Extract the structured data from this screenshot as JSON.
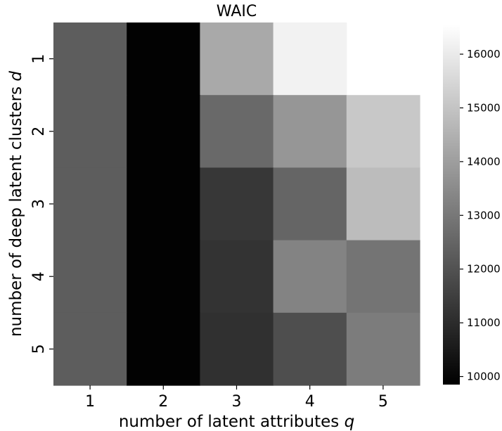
{
  "chart_data": {
    "type": "heatmap",
    "title": "WAIC",
    "xlabel_text": "number of latent attributes",
    "xlabel_symbol": "q",
    "ylabel_text": "number of deep latent clusters",
    "ylabel_symbol": "d",
    "x_categories": [
      "1",
      "2",
      "3",
      "4",
      "5"
    ],
    "y_categories": [
      "1",
      "2",
      "3",
      "4",
      "5"
    ],
    "values": [
      [
        12300,
        9900,
        14300,
        16200,
        null
      ],
      [
        12300,
        9900,
        12600,
        13800,
        15100
      ],
      [
        12300,
        9900,
        11300,
        12500,
        14800
      ],
      [
        12300,
        9900,
        11200,
        13300,
        12900
      ],
      [
        12300,
        9900,
        11100,
        11900,
        13100
      ]
    ],
    "colormap": "gray",
    "colorbar": {
      "range": [
        9850,
        16550
      ],
      "ticks": [
        10000,
        11000,
        12000,
        13000,
        14000,
        15000,
        16000
      ],
      "tick_labels": [
        "10000",
        "11000",
        "12000",
        "13000",
        "14000",
        "15000",
        "16000"
      ]
    }
  }
}
